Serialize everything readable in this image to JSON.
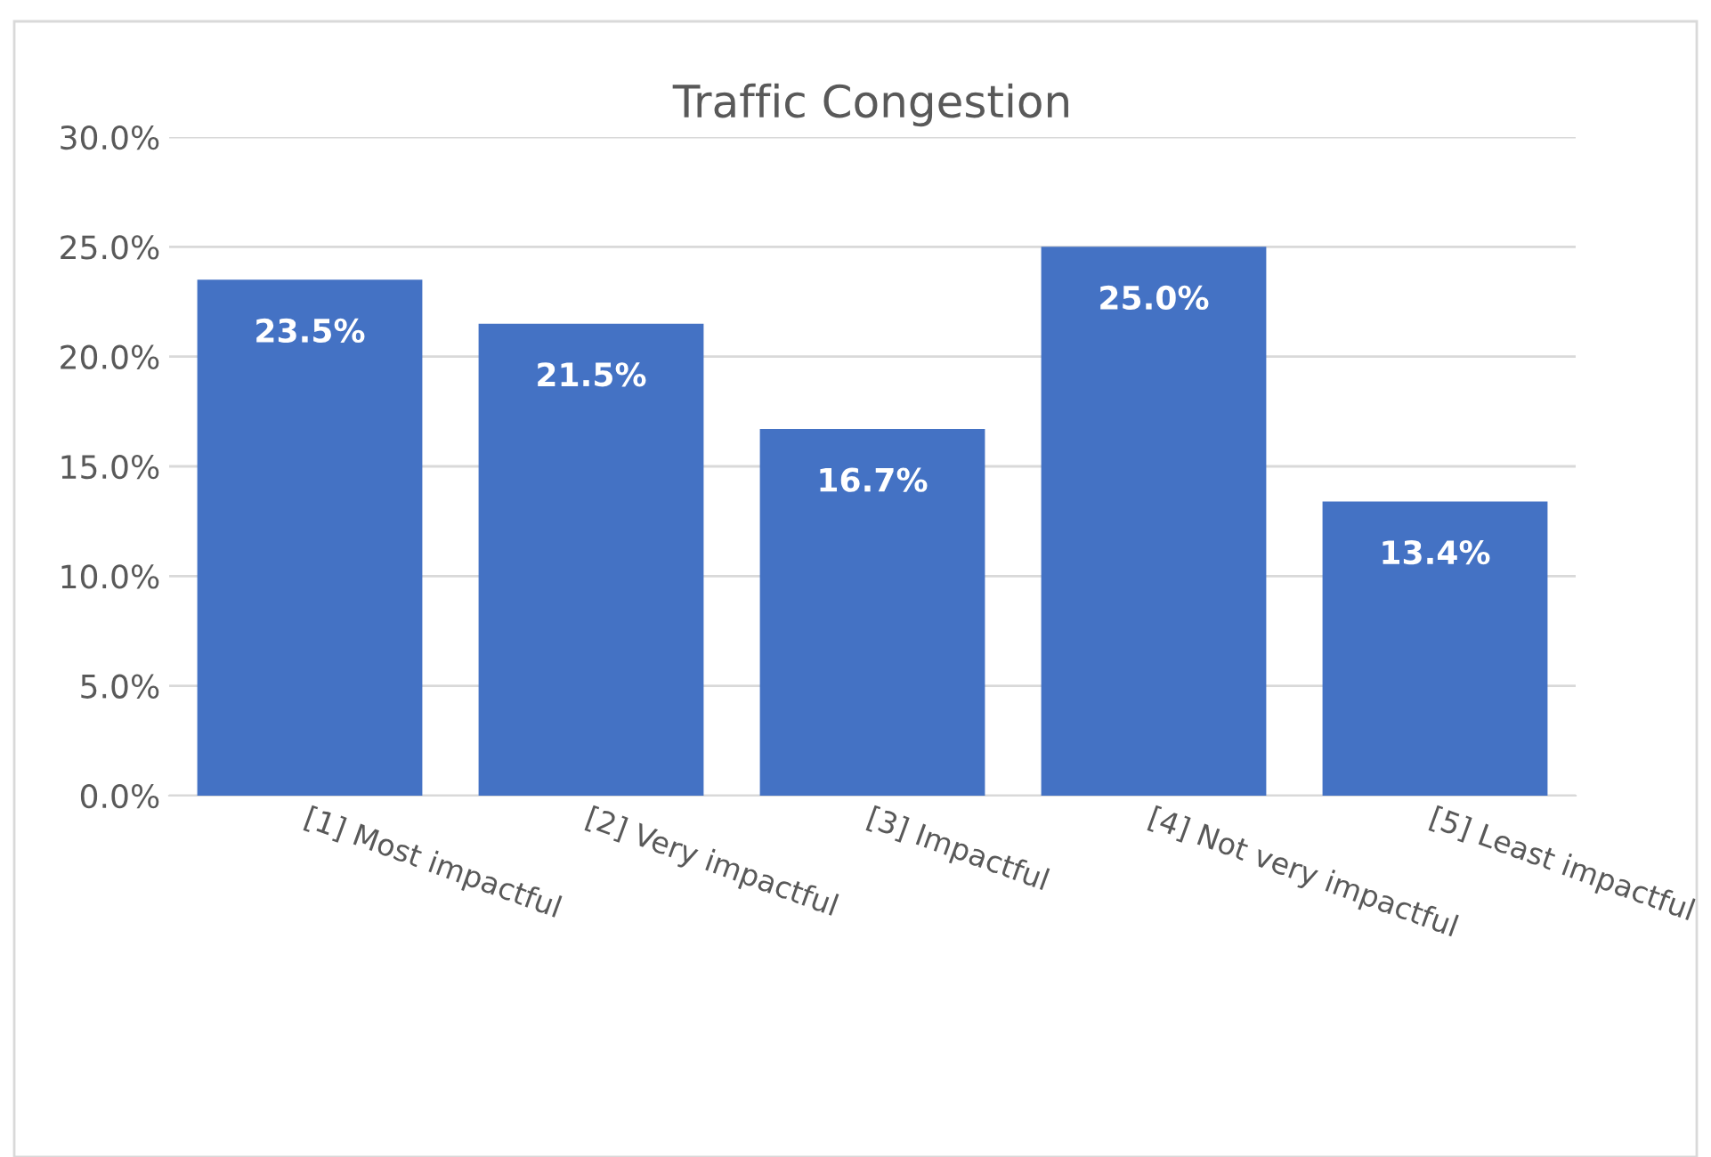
{
  "chart_data": {
    "type": "bar",
    "title": "Traffic Congestion",
    "categories": [
      "[1] Most impactful",
      "[2] Very impactful",
      "[3] Impactful",
      "[4] Not very impactful",
      "[5] Least impactful"
    ],
    "values": [
      23.5,
      21.5,
      16.7,
      25.0,
      13.4
    ],
    "value_labels": [
      "23.5%",
      "21.5%",
      "16.7%",
      "25.0%",
      "13.4%"
    ],
    "color": "#4472c4",
    "ylim": [
      0,
      30
    ],
    "yticks": [
      {
        "value": 0,
        "label": "0.0%"
      },
      {
        "value": 5,
        "label": "5.0%"
      },
      {
        "value": 10,
        "label": "10.0%"
      },
      {
        "value": 15,
        "label": "15.0%"
      },
      {
        "value": 20,
        "label": "20.0%"
      },
      {
        "value": 25,
        "label": "25.0%"
      },
      {
        "value": 30,
        "label": "30.0%"
      }
    ],
    "grid": "y",
    "legend": false
  }
}
